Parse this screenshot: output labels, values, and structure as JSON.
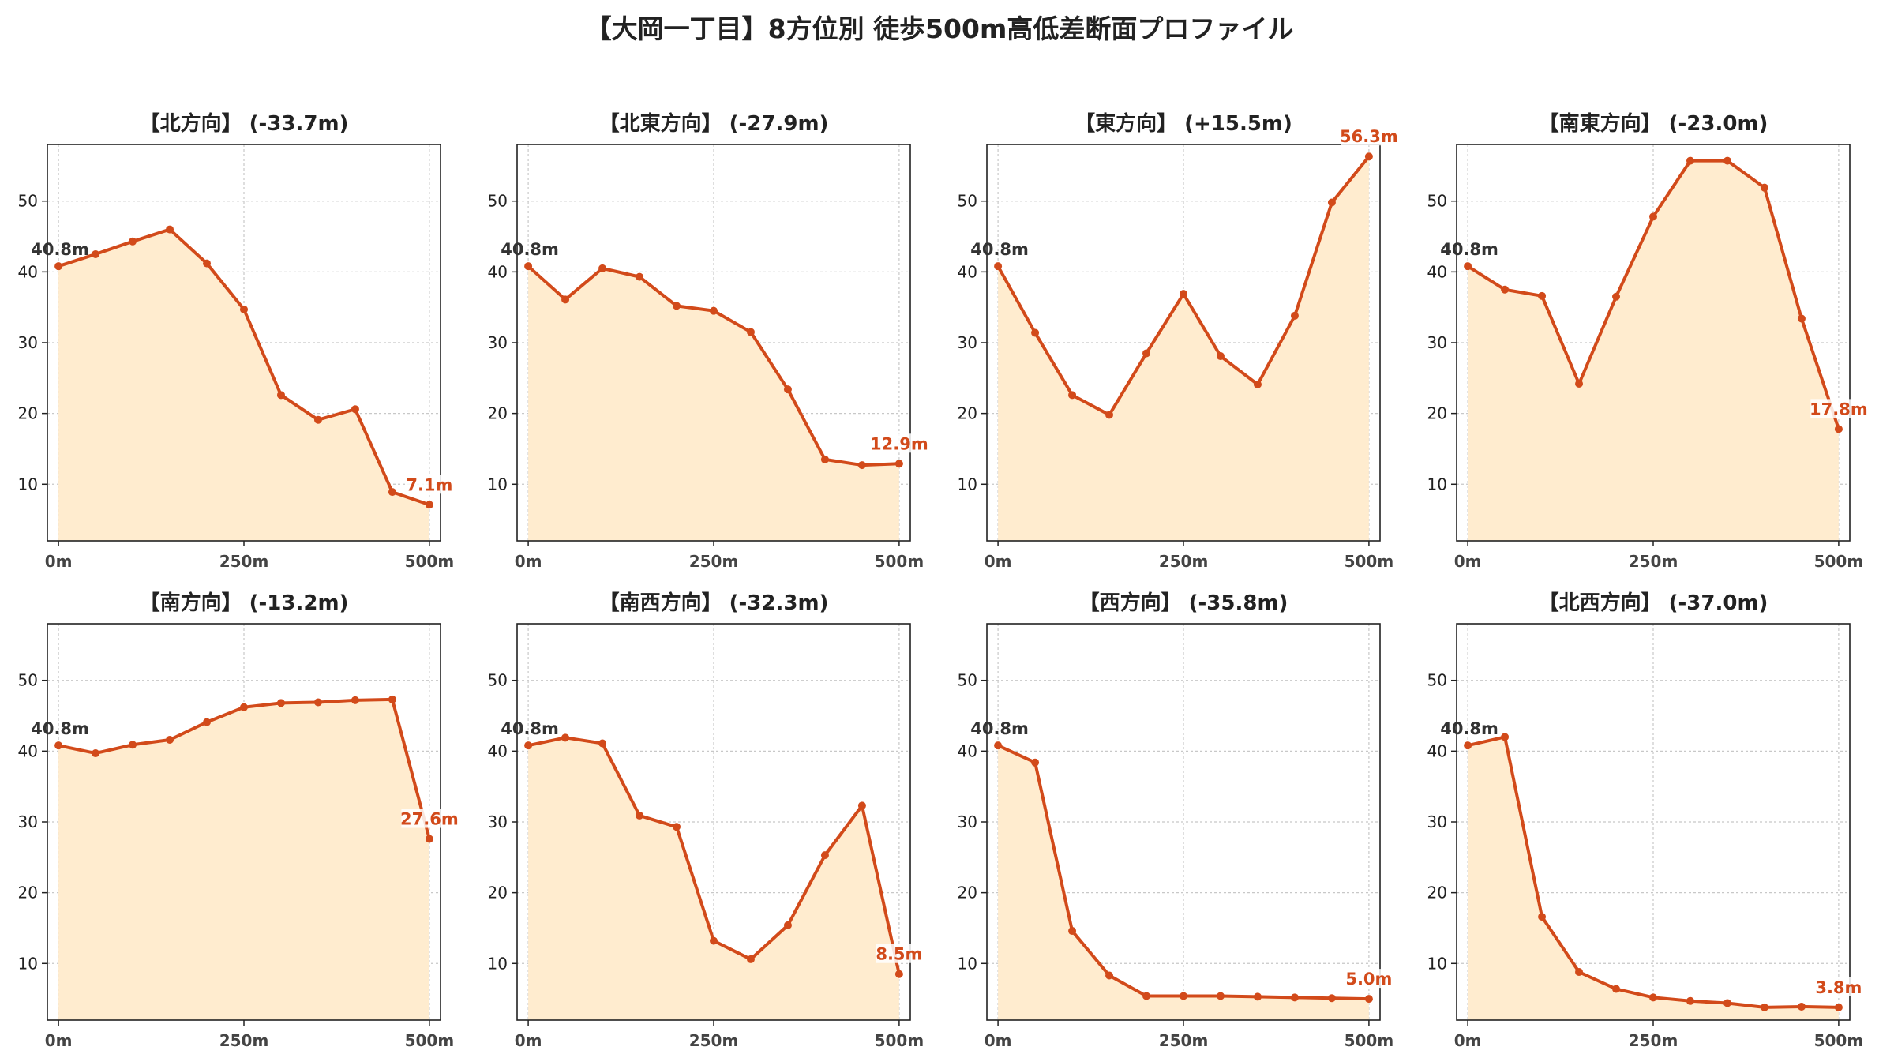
{
  "title": "【大岡一丁目】8方位別 徒歩500m高低差断面プロファイル",
  "colors": {
    "line": "#d24a1a",
    "fill": "#ffeccf",
    "grid": "#c8c8c8",
    "start_label": "#333333",
    "end_label": "#d24a1a"
  },
  "chart_data": [
    {
      "type": "area",
      "title": "【北方向】 (-33.7m)",
      "x": [
        0,
        50,
        100,
        150,
        200,
        250,
        300,
        350,
        400,
        450,
        500
      ],
      "values": [
        40.8,
        42.5,
        44.3,
        46.0,
        41.2,
        34.7,
        22.6,
        19.1,
        20.6,
        8.9,
        7.1
      ],
      "start_label": "40.8m",
      "end_label": "7.1m",
      "xticks": [
        "0m",
        "250m",
        "500m"
      ],
      "yticks": [
        10,
        20,
        30,
        40,
        50
      ],
      "xlim": [
        -15,
        515
      ],
      "ylim": [
        2,
        58
      ],
      "grid": true
    },
    {
      "type": "area",
      "title": "【北東方向】 (-27.9m)",
      "x": [
        0,
        50,
        100,
        150,
        200,
        250,
        300,
        350,
        400,
        450,
        500
      ],
      "values": [
        40.8,
        36.1,
        40.5,
        39.3,
        35.2,
        34.5,
        31.5,
        23.4,
        13.5,
        12.7,
        12.9
      ],
      "start_label": "40.8m",
      "end_label": "12.9m",
      "xticks": [
        "0m",
        "250m",
        "500m"
      ],
      "yticks": [
        10,
        20,
        30,
        40,
        50
      ],
      "xlim": [
        -15,
        515
      ],
      "ylim": [
        2,
        58
      ],
      "grid": true
    },
    {
      "type": "area",
      "title": "【東方向】 (+15.5m)",
      "x": [
        0,
        50,
        100,
        150,
        200,
        250,
        300,
        350,
        400,
        450,
        500
      ],
      "values": [
        40.8,
        31.4,
        22.6,
        19.8,
        28.5,
        36.9,
        28.1,
        24.1,
        33.8,
        49.8,
        56.3
      ],
      "start_label": "40.8m",
      "end_label": "56.3m",
      "xticks": [
        "0m",
        "250m",
        "500m"
      ],
      "yticks": [
        10,
        20,
        30,
        40,
        50
      ],
      "xlim": [
        -15,
        515
      ],
      "ylim": [
        2,
        58
      ],
      "grid": true
    },
    {
      "type": "area",
      "title": "【南東方向】 (-23.0m)",
      "x": [
        0,
        50,
        100,
        150,
        200,
        250,
        300,
        350,
        400,
        450,
        500
      ],
      "values": [
        40.8,
        37.5,
        36.6,
        24.2,
        36.5,
        47.8,
        55.7,
        55.7,
        51.9,
        33.4,
        17.8
      ],
      "start_label": "40.8m",
      "end_label": "17.8m",
      "xticks": [
        "0m",
        "250m",
        "500m"
      ],
      "yticks": [
        10,
        20,
        30,
        40,
        50
      ],
      "xlim": [
        -15,
        515
      ],
      "ylim": [
        2,
        58
      ],
      "grid": true
    },
    {
      "type": "area",
      "title": "【南方向】 (-13.2m)",
      "x": [
        0,
        50,
        100,
        150,
        200,
        250,
        300,
        350,
        400,
        450,
        500
      ],
      "values": [
        40.8,
        39.7,
        40.9,
        41.6,
        44.1,
        46.2,
        46.8,
        46.9,
        47.2,
        47.3,
        27.6
      ],
      "start_label": "40.8m",
      "end_label": "27.6m",
      "xticks": [
        "0m",
        "250m",
        "500m"
      ],
      "yticks": [
        10,
        20,
        30,
        40,
        50
      ],
      "xlim": [
        -15,
        515
      ],
      "ylim": [
        2,
        58
      ],
      "grid": true
    },
    {
      "type": "area",
      "title": "【南西方向】 (-32.3m)",
      "x": [
        0,
        50,
        100,
        150,
        200,
        250,
        300,
        350,
        400,
        450,
        500
      ],
      "values": [
        40.8,
        41.9,
        41.1,
        30.9,
        29.3,
        13.2,
        10.6,
        15.4,
        25.3,
        32.3,
        8.5
      ],
      "start_label": "40.8m",
      "end_label": "8.5m",
      "xticks": [
        "0m",
        "250m",
        "500m"
      ],
      "yticks": [
        10,
        20,
        30,
        40,
        50
      ],
      "xlim": [
        -15,
        515
      ],
      "ylim": [
        2,
        58
      ],
      "grid": true
    },
    {
      "type": "area",
      "title": "【西方向】 (-35.8m)",
      "x": [
        0,
        50,
        100,
        150,
        200,
        250,
        300,
        350,
        400,
        450,
        500
      ],
      "values": [
        40.8,
        38.4,
        14.6,
        8.3,
        5.4,
        5.4,
        5.4,
        5.3,
        5.2,
        5.1,
        5.0
      ],
      "start_label": "40.8m",
      "end_label": "5.0m",
      "xticks": [
        "0m",
        "250m",
        "500m"
      ],
      "yticks": [
        10,
        20,
        30,
        40,
        50
      ],
      "xlim": [
        -15,
        515
      ],
      "ylim": [
        2,
        58
      ],
      "grid": true
    },
    {
      "type": "area",
      "title": "【北西方向】 (-37.0m)",
      "x": [
        0,
        50,
        100,
        150,
        200,
        250,
        300,
        350,
        400,
        450,
        500
      ],
      "values": [
        40.8,
        42.0,
        16.6,
        8.8,
        6.4,
        5.2,
        4.7,
        4.4,
        3.8,
        3.9,
        3.8
      ],
      "start_label": "40.8m",
      "end_label": "3.8m",
      "xticks": [
        "0m",
        "250m",
        "500m"
      ],
      "yticks": [
        10,
        20,
        30,
        40,
        50
      ],
      "xlim": [
        -15,
        515
      ],
      "ylim": [
        2,
        58
      ],
      "grid": true
    }
  ]
}
